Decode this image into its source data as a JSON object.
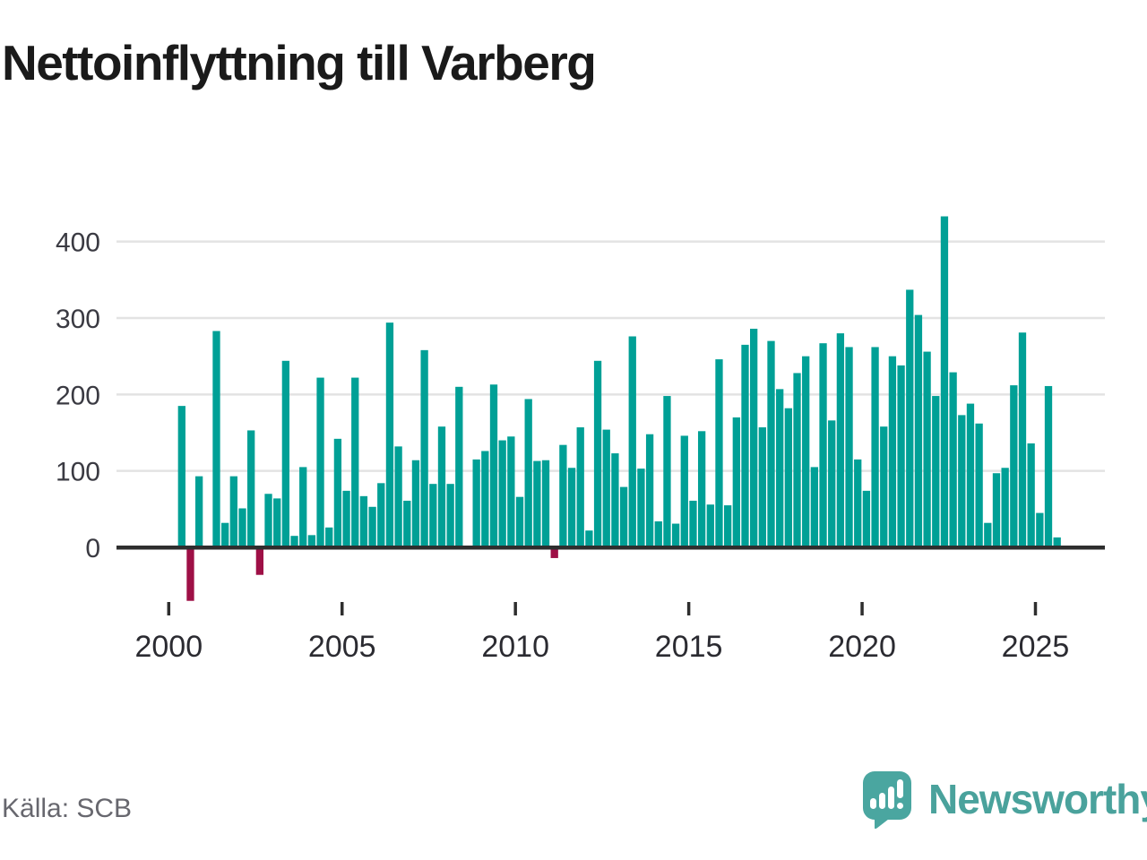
{
  "title": "Nettoinflyttning till Varberg",
  "source": {
    "label": "Källa: SCB"
  },
  "logo": {
    "text": "Newsworthy",
    "icon": "newsworthy-speech-bubble-bar-chart-icon"
  },
  "colors": {
    "positive_bar": "#00a096",
    "negative_bar": "#9e1046",
    "gridline": "#e3e3e3",
    "axis_line": "#2e2e2e",
    "y_tick_label": "#3a3a42",
    "x_tick_label": "#2b2b31",
    "title_text": "#1a1a1a",
    "source_text": "#67676e",
    "logo_teal": "#4aa29c"
  },
  "chart_data": {
    "type": "bar",
    "title": "Nettoinflyttning till Varberg",
    "xlabel": "",
    "ylabel": "",
    "ylim": [
      -90,
      460
    ],
    "grid": "horizontal",
    "legend": "none",
    "y_ticks": [
      0,
      100,
      200,
      300,
      400
    ],
    "x_ticks": [
      {
        "year": 2000,
        "label": "2000"
      },
      {
        "year": 2005,
        "label": "2005"
      },
      {
        "year": 2010,
        "label": "2010"
      },
      {
        "year": 2015,
        "label": "2015"
      },
      {
        "year": 2020,
        "label": "2020"
      },
      {
        "year": 2025,
        "label": "2025"
      }
    ],
    "series_name": "Nettoinflyttning per kvartal",
    "points": [
      {
        "q": "2000Q2",
        "v": 185
      },
      {
        "q": "2000Q3",
        "v": -70
      },
      {
        "q": "2000Q4",
        "v": 93
      },
      {
        "q": "2001Q1",
        "v": 0
      },
      {
        "q": "2001Q2",
        "v": 283
      },
      {
        "q": "2001Q3",
        "v": 32
      },
      {
        "q": "2001Q4",
        "v": 93
      },
      {
        "q": "2002Q1",
        "v": 51
      },
      {
        "q": "2002Q2",
        "v": 153
      },
      {
        "q": "2002Q3",
        "v": -36
      },
      {
        "q": "2002Q4",
        "v": 70
      },
      {
        "q": "2003Q1",
        "v": 64
      },
      {
        "q": "2003Q2",
        "v": 244
      },
      {
        "q": "2003Q3",
        "v": 15
      },
      {
        "q": "2003Q4",
        "v": 105
      },
      {
        "q": "2004Q1",
        "v": 16
      },
      {
        "q": "2004Q2",
        "v": 222
      },
      {
        "q": "2004Q3",
        "v": 26
      },
      {
        "q": "2004Q4",
        "v": 142
      },
      {
        "q": "2005Q1",
        "v": 74
      },
      {
        "q": "2005Q2",
        "v": 222
      },
      {
        "q": "2005Q3",
        "v": 67
      },
      {
        "q": "2005Q4",
        "v": 53
      },
      {
        "q": "2006Q1",
        "v": 84
      },
      {
        "q": "2006Q2",
        "v": 294
      },
      {
        "q": "2006Q3",
        "v": 132
      },
      {
        "q": "2006Q4",
        "v": 61
      },
      {
        "q": "2007Q1",
        "v": 114
      },
      {
        "q": "2007Q2",
        "v": 258
      },
      {
        "q": "2007Q3",
        "v": 83
      },
      {
        "q": "2007Q4",
        "v": 158
      },
      {
        "q": "2008Q1",
        "v": 83
      },
      {
        "q": "2008Q2",
        "v": 210
      },
      {
        "q": "2008Q3",
        "v": 0
      },
      {
        "q": "2008Q4",
        "v": 115
      },
      {
        "q": "2009Q1",
        "v": 126
      },
      {
        "q": "2009Q2",
        "v": 213
      },
      {
        "q": "2009Q3",
        "v": 140
      },
      {
        "q": "2009Q4",
        "v": 145
      },
      {
        "q": "2010Q1",
        "v": 66
      },
      {
        "q": "2010Q2",
        "v": 194
      },
      {
        "q": "2010Q3",
        "v": 113
      },
      {
        "q": "2010Q4",
        "v": 114
      },
      {
        "q": "2011Q1",
        "v": -14
      },
      {
        "q": "2011Q2",
        "v": 134
      },
      {
        "q": "2011Q3",
        "v": 104
      },
      {
        "q": "2011Q4",
        "v": 157
      },
      {
        "q": "2012Q1",
        "v": 22
      },
      {
        "q": "2012Q2",
        "v": 244
      },
      {
        "q": "2012Q3",
        "v": 154
      },
      {
        "q": "2012Q4",
        "v": 123
      },
      {
        "q": "2013Q1",
        "v": 79
      },
      {
        "q": "2013Q2",
        "v": 276
      },
      {
        "q": "2013Q3",
        "v": 103
      },
      {
        "q": "2013Q4",
        "v": 148
      },
      {
        "q": "2014Q1",
        "v": 34
      },
      {
        "q": "2014Q2",
        "v": 198
      },
      {
        "q": "2014Q3",
        "v": 31
      },
      {
        "q": "2014Q4",
        "v": 146
      },
      {
        "q": "2015Q1",
        "v": 61
      },
      {
        "q": "2015Q2",
        "v": 152
      },
      {
        "q": "2015Q3",
        "v": 56
      },
      {
        "q": "2015Q4",
        "v": 246
      },
      {
        "q": "2016Q1",
        "v": 55
      },
      {
        "q": "2016Q2",
        "v": 170
      },
      {
        "q": "2016Q3",
        "v": 265
      },
      {
        "q": "2016Q4",
        "v": 286
      },
      {
        "q": "2017Q1",
        "v": 157
      },
      {
        "q": "2017Q2",
        "v": 270
      },
      {
        "q": "2017Q3",
        "v": 207
      },
      {
        "q": "2017Q4",
        "v": 182
      },
      {
        "q": "2018Q1",
        "v": 228
      },
      {
        "q": "2018Q2",
        "v": 250
      },
      {
        "q": "2018Q3",
        "v": 105
      },
      {
        "q": "2018Q4",
        "v": 267
      },
      {
        "q": "2019Q1",
        "v": 166
      },
      {
        "q": "2019Q2",
        "v": 280
      },
      {
        "q": "2019Q3",
        "v": 262
      },
      {
        "q": "2019Q4",
        "v": 115
      },
      {
        "q": "2020Q1",
        "v": 74
      },
      {
        "q": "2020Q2",
        "v": 262
      },
      {
        "q": "2020Q3",
        "v": 158
      },
      {
        "q": "2020Q4",
        "v": 250
      },
      {
        "q": "2021Q1",
        "v": 238
      },
      {
        "q": "2021Q2",
        "v": 337
      },
      {
        "q": "2021Q3",
        "v": 304
      },
      {
        "q": "2021Q4",
        "v": 256
      },
      {
        "q": "2022Q1",
        "v": 198
      },
      {
        "q": "2022Q2",
        "v": 433
      },
      {
        "q": "2022Q3",
        "v": 229
      },
      {
        "q": "2022Q4",
        "v": 173
      },
      {
        "q": "2023Q1",
        "v": 188
      },
      {
        "q": "2023Q2",
        "v": 162
      },
      {
        "q": "2023Q3",
        "v": 32
      },
      {
        "q": "2023Q4",
        "v": 97
      },
      {
        "q": "2024Q1",
        "v": 104
      },
      {
        "q": "2024Q2",
        "v": 212
      },
      {
        "q": "2024Q3",
        "v": 281
      },
      {
        "q": "2024Q4",
        "v": 136
      },
      {
        "q": "2025Q1",
        "v": 45
      },
      {
        "q": "2025Q2",
        "v": 211
      },
      {
        "q": "2025Q3",
        "v": 13
      }
    ]
  }
}
